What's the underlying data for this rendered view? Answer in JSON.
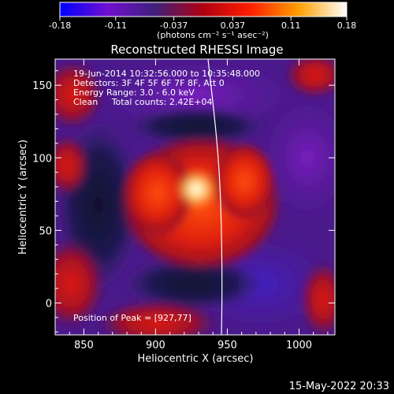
{
  "colorbar": {
    "tick_labels": [
      "-0.18",
      "-0.11",
      "-0.037",
      "0.037",
      "0.11",
      "0.18"
    ],
    "tick_values": [
      -0.18,
      -0.11,
      -0.037,
      0.037,
      0.11,
      0.18
    ],
    "range": [
      -0.18,
      0.18
    ],
    "units": "(photons cm⁻² s⁻¹ asec⁻²)",
    "colors": [
      "#0000ff",
      "#7010d0",
      "#40207a",
      "#b00010",
      "#ff2000",
      "#ffa000",
      "#ffffff"
    ]
  },
  "chart_data": {
    "type": "heatmap",
    "title": "Reconstructed RHESSI Image",
    "xlabel": "Heliocentric X (arcsec)",
    "ylabel": "Heliocentric Y (arcsec)",
    "xlim": [
      830,
      1025
    ],
    "ylim": [
      -22,
      168
    ],
    "x_ticks": [
      850,
      900,
      950,
      1000
    ],
    "y_ticks": [
      0,
      50,
      100,
      150
    ],
    "grid": false,
    "peak_position": [
      927,
      77
    ],
    "peak_value": 0.18,
    "annotations": [
      "19-Jun-2014 10:32:56.000 to 10:35:48.000",
      "Detectors: 3F 4F 5F 6F 7F 8F, Att 0",
      "Energy Range: 3.0 - 6.0 keV",
      "Clean     Total counts: 2.42E+04"
    ],
    "peak_annotation": "Position of Peak = [927,77]",
    "limb_line_color": "#ffffff"
  },
  "footer": {
    "timestamp": "15-May-2022 20:33"
  }
}
